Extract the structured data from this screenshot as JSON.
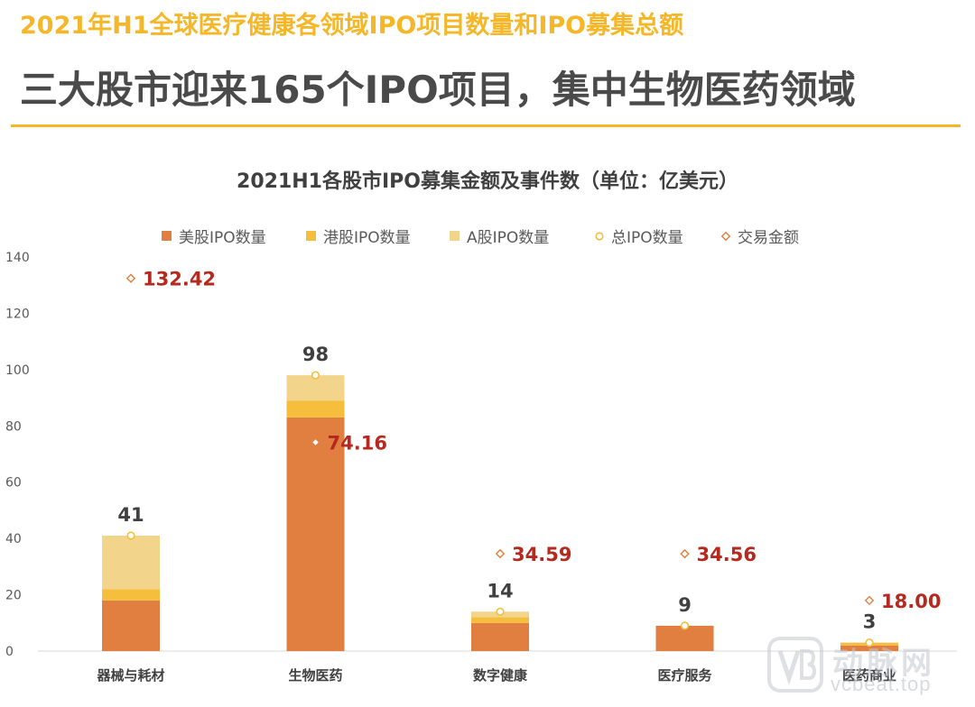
{
  "header": {
    "subtitle": "2021年H1全球医疗健康各领域IPO项目数量和IPO募集总额",
    "title": "三大股市迎来165个IPO项目，集中生物医药领域"
  },
  "chart_data": {
    "type": "bar",
    "stacked": true,
    "title": "2021H1各股市IPO募集金额及事件数（单位：亿美元）",
    "categories": [
      "器械与耗材",
      "生物医药",
      "数字健康",
      "医疗服务",
      "医药商业"
    ],
    "series": [
      {
        "name": "美股IPO数量",
        "values": [
          18,
          83,
          10,
          9,
          2
        ],
        "color": "#e07f3f"
      },
      {
        "name": "港股IPO数量",
        "values": [
          4,
          6,
          2,
          0,
          1
        ],
        "color": "#f5be3c"
      },
      {
        "name": "A股IPO数量",
        "values": [
          19,
          9,
          2,
          0,
          0
        ],
        "color": "#f2d48a"
      }
    ],
    "total_series": {
      "name": "总IPO数量",
      "values": [
        41,
        98,
        14,
        9,
        3
      ],
      "labels": [
        "41",
        "98",
        "14",
        "9",
        "3"
      ]
    },
    "amount_series": {
      "name": "交易金额",
      "values": [
        132.42,
        74.16,
        34.59,
        34.56,
        18.0
      ],
      "labels": [
        "132.42",
        "74.16",
        "34.59",
        "34.56",
        "18.00"
      ]
    },
    "ylim": [
      0,
      140
    ],
    "yticks": [
      0,
      20,
      40,
      60,
      80,
      100,
      120,
      140
    ],
    "legend_position": "top",
    "xlabel": "",
    "ylabel": ""
  },
  "watermark": {
    "brand_cn": "动脉网",
    "brand_domain": "vcbeat.top"
  }
}
